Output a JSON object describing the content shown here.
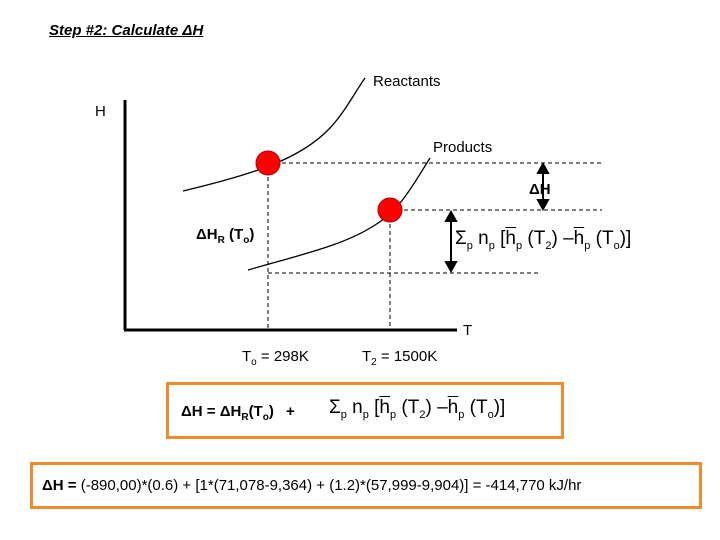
{
  "title": "Step #2: Calculate ΔH",
  "diagram": {
    "y_axis_label": "H",
    "x_axis_label": "T",
    "reactants_label": "Reactants",
    "products_label": "Products",
    "delta_h_label": "ΔH",
    "delta_hr_label": "ΔH",
    "delta_hr_sub": "R",
    "delta_hr_arg": "(T",
    "delta_hr_arg_sub": "o",
    "delta_hr_close": ")",
    "t0_label": "T",
    "t0_sub": "o",
    "t0_value": " = 298K",
    "t2_label": "T",
    "t2_sub": "2",
    "t2_value": " = 1500K",
    "marker_color": "#ff0000"
  },
  "sum_expression": {
    "sigma": "Σ",
    "sigma_sub": "p",
    "n": "n",
    "n_sub": "p",
    "open": " [",
    "h1": "h",
    "h1_sub": "p",
    "t2": " (T",
    "t2_sub": "2",
    "minus": ") –",
    "h2": "h",
    "h2_sub": "p",
    "t0": " (T",
    "t0_sub": "o",
    "close": ")]"
  },
  "equation": {
    "lhs": "ΔH = ΔH",
    "lhs_sub": "R",
    "lhs_arg": "(T",
    "lhs_arg_sub": "o",
    "lhs_close": ")",
    "plus": "+"
  },
  "result": {
    "lhs": "ΔH =",
    "text": " (-890,00)*(0.6) + [1*(71,078-9,364) + (1.2)*(57,999-9,904)] = -414,770 kJ/hr"
  },
  "accent_color": "#f08a2a"
}
